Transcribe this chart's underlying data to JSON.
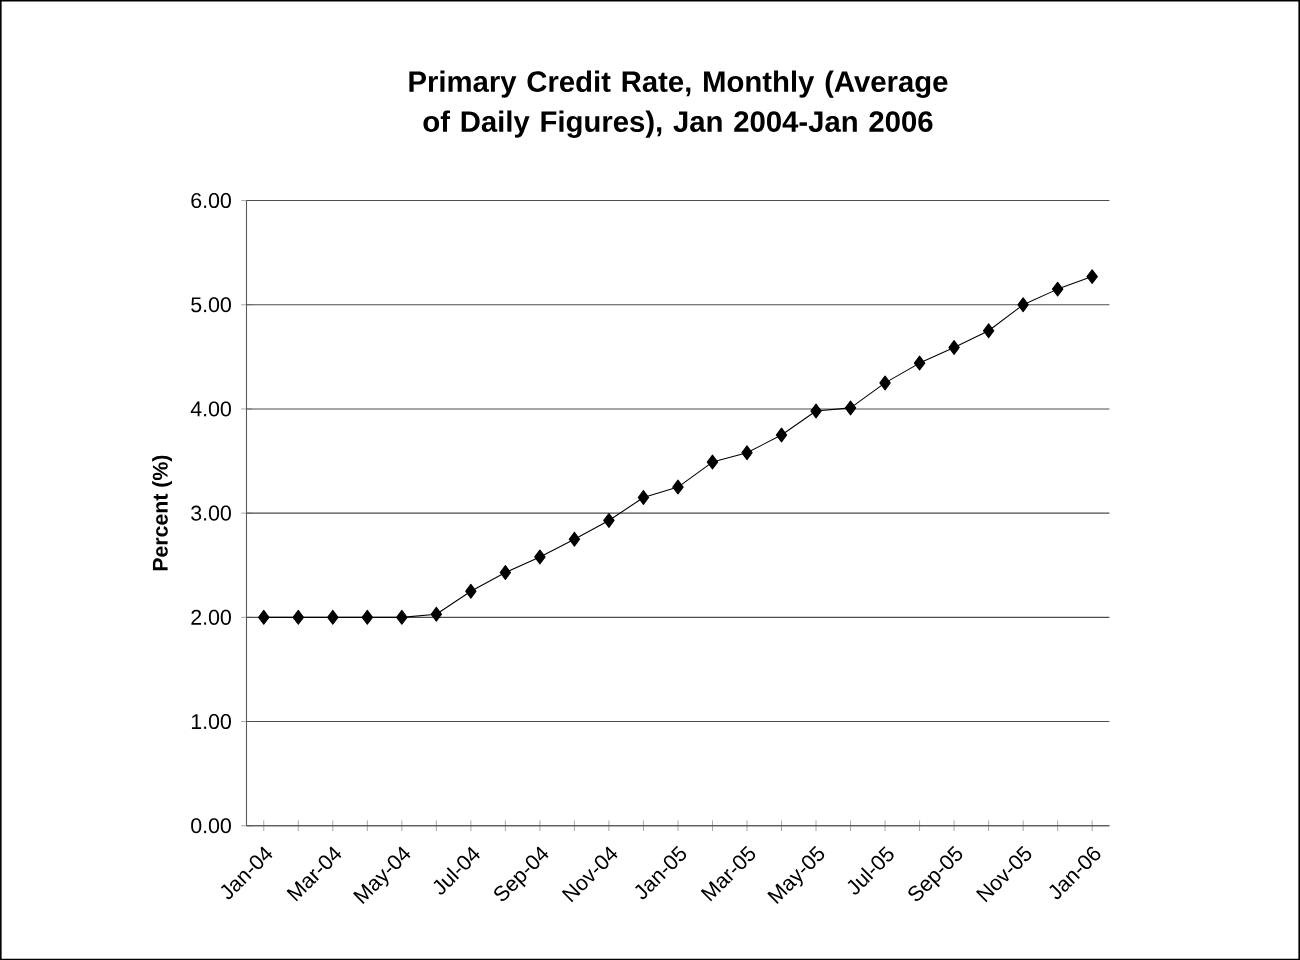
{
  "chart_data": {
    "type": "line",
    "title": "Primary Credit Rate, Monthly (Average of Daily Figures), Jan 2004-Jan 2006",
    "ylabel": "Percent (%)",
    "categories": [
      "Jan-04",
      null,
      "Mar-04",
      null,
      "May-04",
      null,
      "Jul-04",
      null,
      "Sep-04",
      null,
      "Nov-04",
      null,
      "Jan-05",
      null,
      "Mar-05",
      null,
      "May-05",
      null,
      "Jul-05",
      null,
      "Sep-05",
      null,
      "Nov-05",
      null,
      "Jan-06"
    ],
    "series": [
      {
        "color": "#000000",
        "values": [
          2.0,
          2.0,
          2.0,
          2.0,
          2.0,
          2.03,
          2.25,
          2.43,
          2.58,
          2.75,
          2.93,
          3.15,
          3.25,
          3.49,
          3.58,
          3.75,
          3.98,
          4.01,
          4.25,
          4.44,
          4.59,
          4.75,
          5.0,
          5.15,
          5.27
        ]
      }
    ],
    "ylim": [
      0,
      6
    ],
    "yticks": [
      {
        "value": 0,
        "label": "0.00"
      },
      {
        "value": 1,
        "label": "1.00"
      },
      {
        "value": 2,
        "label": "2.00"
      },
      {
        "value": 3,
        "label": "3.00"
      },
      {
        "value": 4,
        "label": "4.00"
      },
      {
        "value": 5,
        "label": "5.00"
      },
      {
        "value": 6,
        "label": "6.00"
      }
    ],
    "grid": "y",
    "marker": "diamond",
    "line_style": "solid"
  }
}
